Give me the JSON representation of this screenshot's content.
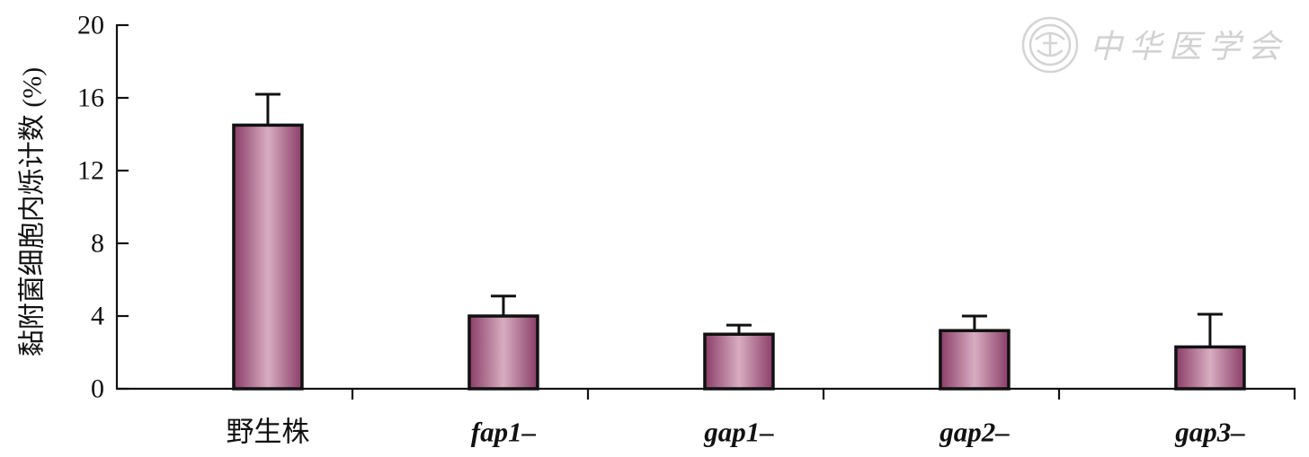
{
  "watermark": {
    "text": "中华医学会"
  },
  "colors": {
    "bar_edge": "#8b3d68",
    "bar_center": "#d8adc0",
    "stroke": "#111111"
  },
  "chart_data": {
    "type": "bar",
    "categories": [
      "野生株",
      "fap1–",
      "gap1–",
      "gap2–",
      "gap3–"
    ],
    "values": [
      14.5,
      4.0,
      3.0,
      3.2,
      2.3
    ],
    "errors": [
      1.7,
      1.1,
      0.5,
      0.8,
      1.8
    ],
    "ylabel": "黏附菌细胞内烁计数 (%)",
    "ylim": [
      0,
      20
    ],
    "yticks": [
      0,
      4,
      8,
      12,
      16,
      20
    ],
    "grid": false,
    "legend": "none"
  }
}
